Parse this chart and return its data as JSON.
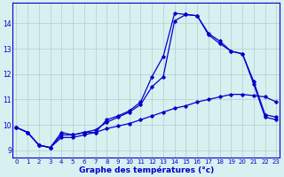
{
  "title": "Graphe des températures (°c)",
  "background_color": "#d8f0f0",
  "line_color": "#0000cc",
  "grid_color": "#b0cece",
  "x_ticks": [
    0,
    1,
    2,
    3,
    4,
    5,
    6,
    7,
    8,
    9,
    10,
    11,
    12,
    13,
    14,
    15,
    16,
    17,
    18,
    19,
    20,
    21,
    22,
    23
  ],
  "ylim": [
    8.7,
    14.8
  ],
  "xlim": [
    -0.3,
    23.3
  ],
  "y_ticks": [
    9,
    10,
    11,
    12,
    13,
    14
  ],
  "line1_x": [
    0,
    1,
    2,
    3,
    4,
    5,
    6,
    7,
    8,
    9,
    10,
    11,
    12,
    13,
    14,
    15,
    16,
    17,
    18,
    19,
    20,
    21,
    22,
    23
  ],
  "line1_y": [
    9.9,
    9.7,
    9.2,
    9.1,
    9.7,
    9.6,
    9.7,
    9.7,
    10.2,
    10.35,
    10.55,
    10.9,
    11.9,
    12.7,
    14.4,
    14.35,
    14.3,
    13.55,
    13.2,
    12.9,
    12.8,
    11.6,
    10.3,
    10.2
  ],
  "line2_x": [
    0,
    1,
    2,
    3,
    4,
    5,
    6,
    7,
    8,
    9,
    10,
    11,
    12,
    13,
    14,
    15,
    16,
    17,
    18,
    19,
    20,
    21,
    22,
    23
  ],
  "line2_y": [
    9.9,
    9.7,
    9.2,
    9.1,
    9.6,
    9.6,
    9.7,
    9.8,
    10.1,
    10.3,
    10.5,
    10.8,
    11.5,
    11.9,
    14.1,
    14.35,
    14.3,
    13.6,
    13.3,
    12.9,
    12.8,
    11.7,
    10.4,
    10.3
  ],
  "line3_x": [
    0,
    1,
    2,
    3,
    4,
    5,
    6,
    7,
    8,
    9,
    10,
    11,
    12,
    13,
    14,
    15,
    16,
    17,
    18,
    19,
    20,
    21,
    22,
    23
  ],
  "line3_y": [
    9.9,
    9.7,
    9.2,
    9.1,
    9.5,
    9.5,
    9.6,
    9.7,
    9.85,
    9.95,
    10.05,
    10.2,
    10.35,
    10.5,
    10.65,
    10.75,
    10.9,
    11.0,
    11.1,
    11.2,
    11.2,
    11.15,
    11.1,
    10.9
  ]
}
